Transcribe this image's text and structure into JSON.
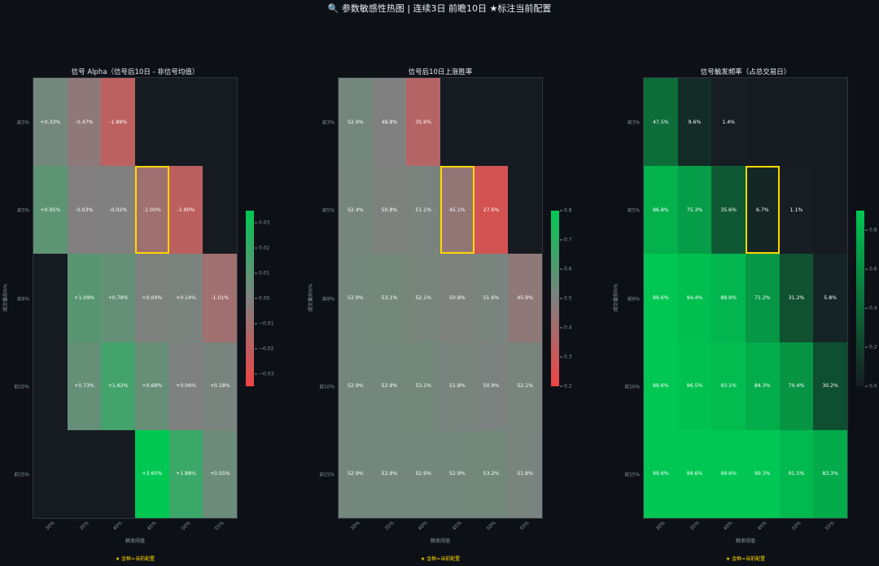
{
  "suptitle": "🔍 参数敏感性热图  |  连续3日  前瞻10日  ★标注当前配置",
  "axes": {
    "y_title": "成交量前N%",
    "x_title": "触发阈值",
    "row_labels": [
      "前3%",
      "前5%",
      "前8%",
      "前10%",
      "前15%"
    ],
    "col_labels": [
      "30%",
      "35%",
      "40%",
      "45%",
      "50%",
      "55%"
    ],
    "footnote": "★ 金框=当前配置"
  },
  "highlight": {
    "row": 1,
    "col": 3
  },
  "colors": {
    "green": "#00c853",
    "gray": "#808080",
    "red": "#ef4444",
    "dark": "#161b22",
    "highlight": "#ffd700"
  },
  "chart_data": [
    {
      "type": "heatmap",
      "title": "信号 Alpha（信号后10日 - 非信号均值）",
      "rows": [
        "前3%",
        "前5%",
        "前8%",
        "前10%",
        "前15%"
      ],
      "columns": [
        "30%",
        "35%",
        "40%",
        "45%",
        "50%",
        "55%"
      ],
      "values": [
        [
          0.0033,
          -0.0047,
          -0.0189,
          null,
          null,
          null
        ],
        [
          0.0095,
          -0.0003,
          -0.0002,
          -0.01,
          -0.019,
          null
        ],
        [
          null,
          0.0109,
          0.0078,
          0.0004,
          0.0014,
          -0.0101
        ],
        [
          null,
          0.0073,
          0.0163,
          0.0068,
          0.0006,
          0.0018
        ],
        [
          null,
          null,
          null,
          0.0365,
          0.0188,
          0.0055
        ]
      ],
      "labels": [
        [
          "+0.33%",
          "-0.47%",
          "-1.89%",
          "",
          "",
          ""
        ],
        [
          "+0.95%",
          "-0.03%",
          "-0.02%",
          "-1.00%",
          "-1.90%",
          ""
        ],
        [
          "",
          "+1.09%",
          "+0.78%",
          "+0.04%",
          "+0.14%",
          "-1.01%"
        ],
        [
          "",
          "+0.73%",
          "+1.63%",
          "+0.68%",
          "+0.06%",
          "+0.18%"
        ],
        [
          "",
          "",
          "",
          "+3.65%",
          "+1.88%",
          "+0.55%"
        ]
      ],
      "vmin": -0.035,
      "vmax": 0.035,
      "colormap": "red-gray-green",
      "colorbar_ticks": [
        {
          "value": 0.03,
          "label": "0.03"
        },
        {
          "value": 0.02,
          "label": "0.02"
        },
        {
          "value": 0.01,
          "label": "0.01"
        },
        {
          "value": 0.0,
          "label": "0.00"
        },
        {
          "value": -0.01,
          "label": "−0.01"
        },
        {
          "value": -0.02,
          "label": "−0.02"
        },
        {
          "value": -0.03,
          "label": "−0.03"
        }
      ]
    },
    {
      "type": "heatmap",
      "title": "信号后10日上涨胜率",
      "rows": [
        "前3%",
        "前5%",
        "前8%",
        "前10%",
        "前15%"
      ],
      "columns": [
        "30%",
        "35%",
        "40%",
        "45%",
        "50%",
        "55%"
      ],
      "values": [
        [
          0.529,
          0.498,
          0.359,
          null,
          null,
          null
        ],
        [
          0.524,
          0.508,
          0.511,
          0.451,
          0.276,
          null
        ],
        [
          0.529,
          0.531,
          0.521,
          0.508,
          0.516,
          0.459
        ],
        [
          0.529,
          0.529,
          0.531,
          0.518,
          0.509,
          0.521
        ],
        [
          0.529,
          0.529,
          0.529,
          0.529,
          0.532,
          0.518
        ]
      ],
      "labels": [
        [
          "52.9%",
          "49.8%",
          "35.9%",
          "",
          "",
          ""
        ],
        [
          "52.4%",
          "50.8%",
          "51.1%",
          "45.1%",
          "27.6%",
          ""
        ],
        [
          "52.9%",
          "53.1%",
          "52.1%",
          "50.8%",
          "51.6%",
          "45.9%"
        ],
        [
          "52.9%",
          "52.9%",
          "53.1%",
          "51.8%",
          "50.9%",
          "52.1%"
        ],
        [
          "52.9%",
          "52.9%",
          "52.9%",
          "52.9%",
          "53.2%",
          "51.8%"
        ]
      ],
      "vmin": 0.2,
      "vmax": 0.8,
      "colormap": "red-gray-green",
      "colorbar_ticks": [
        {
          "value": 0.8,
          "label": "0.8"
        },
        {
          "value": 0.7,
          "label": "0.7"
        },
        {
          "value": 0.6,
          "label": "0.6"
        },
        {
          "value": 0.5,
          "label": "0.5"
        },
        {
          "value": 0.4,
          "label": "0.4"
        },
        {
          "value": 0.3,
          "label": "0.3"
        },
        {
          "value": 0.2,
          "label": "0.2"
        }
      ]
    },
    {
      "type": "heatmap",
      "title": "信号触发频率（占总交易日）",
      "rows": [
        "前3%",
        "前5%",
        "前8%",
        "前10%",
        "前15%"
      ],
      "columns": [
        "30%",
        "35%",
        "40%",
        "45%",
        "50%",
        "55%"
      ],
      "values": [
        [
          0.475,
          0.096,
          0.014,
          null,
          null,
          null
        ],
        [
          0.868,
          0.753,
          0.356,
          0.067,
          0.011,
          null
        ],
        [
          0.996,
          0.944,
          0.889,
          0.712,
          0.312,
          0.058
        ],
        [
          0.996,
          0.965,
          0.931,
          0.843,
          0.704,
          0.302
        ],
        [
          0.996,
          0.996,
          0.996,
          0.993,
          0.915,
          0.833
        ]
      ],
      "labels": [
        [
          "47.5%",
          "9.6%",
          "1.4%",
          "",
          "",
          ""
        ],
        [
          "86.8%",
          "75.3%",
          "35.6%",
          "6.7%",
          "1.1%",
          ""
        ],
        [
          "99.6%",
          "94.4%",
          "88.9%",
          "71.2%",
          "31.2%",
          "5.8%"
        ],
        [
          "99.6%",
          "96.5%",
          "93.1%",
          "84.3%",
          "70.4%",
          "30.2%"
        ],
        [
          "99.6%",
          "99.6%",
          "99.6%",
          "99.3%",
          "91.5%",
          "83.3%"
        ]
      ],
      "vmin": 0.0,
      "vmax": 1.0,
      "colormap": "dark-green",
      "colorbar_ticks": [
        {
          "value": 0.8,
          "label": "0.8"
        },
        {
          "value": 0.6,
          "label": "0.6"
        },
        {
          "value": 0.4,
          "label": "0.4"
        },
        {
          "value": 0.2,
          "label": "0.2"
        },
        {
          "value": 0.0,
          "label": "0.0"
        }
      ]
    }
  ]
}
